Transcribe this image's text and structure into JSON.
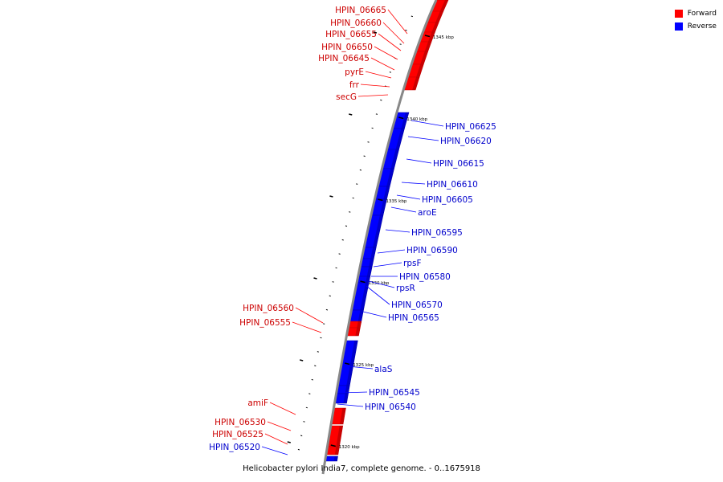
{
  "legend": [
    {
      "label": "Forward",
      "color": "#ff0000"
    },
    {
      "label": "Reverse",
      "color": "#0000ff"
    }
  ],
  "caption": "Helicobacter pylori India7, complete genome. - 0..1675918",
  "colors": {
    "forward": "#ff0000",
    "reverse": "#0000ff",
    "backbone": "#888888"
  },
  "ticks": [
    "1345 kbp",
    "1340 kbp",
    "1335 kbp",
    "1330 kbp",
    "1325 kbp",
    "1320 kbp"
  ],
  "genes": [
    {
      "name": "HPIN_06665",
      "strand": "forward"
    },
    {
      "name": "HPIN_06660",
      "strand": "forward"
    },
    {
      "name": "HPIN_06655",
      "strand": "forward"
    },
    {
      "name": "HPIN_06650",
      "strand": "forward"
    },
    {
      "name": "HPIN_06645",
      "strand": "forward"
    },
    {
      "name": "pyrE",
      "strand": "forward"
    },
    {
      "name": "frr",
      "strand": "forward"
    },
    {
      "name": "secG",
      "strand": "forward"
    },
    {
      "name": "HPIN_06625",
      "strand": "reverse"
    },
    {
      "name": "HPIN_06620",
      "strand": "reverse"
    },
    {
      "name": "HPIN_06615",
      "strand": "reverse"
    },
    {
      "name": "HPIN_06610",
      "strand": "reverse"
    },
    {
      "name": "HPIN_06605",
      "strand": "reverse"
    },
    {
      "name": "aroE",
      "strand": "reverse"
    },
    {
      "name": "HPIN_06595",
      "strand": "reverse"
    },
    {
      "name": "HPIN_06590",
      "strand": "reverse"
    },
    {
      "name": "rpsF",
      "strand": "reverse"
    },
    {
      "name": "HPIN_06580",
      "strand": "reverse"
    },
    {
      "name": "rpsR",
      "strand": "reverse"
    },
    {
      "name": "HPIN_06570",
      "strand": "reverse"
    },
    {
      "name": "HPIN_06565",
      "strand": "reverse"
    },
    {
      "name": "HPIN_06560",
      "strand": "forward"
    },
    {
      "name": "HPIN_06555",
      "strand": "forward"
    },
    {
      "name": "alaS",
      "strand": "reverse"
    },
    {
      "name": "HPIN_06545",
      "strand": "reverse"
    },
    {
      "name": "HPIN_06540",
      "strand": "reverse"
    },
    {
      "name": "amiF",
      "strand": "forward"
    },
    {
      "name": "HPIN_06530",
      "strand": "forward"
    },
    {
      "name": "HPIN_06525",
      "strand": "forward"
    },
    {
      "name": "HPIN_06520",
      "strand": "reverse"
    }
  ]
}
